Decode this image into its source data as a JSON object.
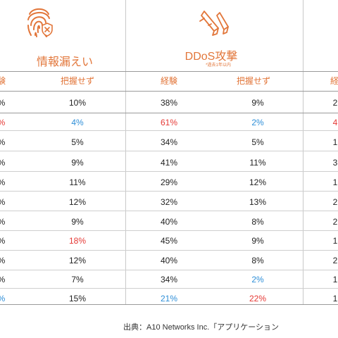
{
  "categories": [
    {
      "title": "情報漏えい",
      "subtitle": ""
    },
    {
      "title": "DDoS攻撃",
      "subtitle": "*過去1年以内"
    }
  ],
  "headers": [
    "験",
    "把握せず",
    "経験",
    "把握せず",
    "経"
  ],
  "rows": [
    {
      "c0": "%",
      "c1": "10%",
      "c2": "38%",
      "c3": "9%",
      "c4": "2"
    },
    {
      "c0": "%",
      "c1": "4%",
      "c2": "61%",
      "c3": "2%",
      "c4": "4"
    },
    {
      "c0": "%",
      "c1": "5%",
      "c2": "34%",
      "c3": "5%",
      "c4": "1"
    },
    {
      "c0": "%",
      "c1": "9%",
      "c2": "41%",
      "c3": "11%",
      "c4": "3"
    },
    {
      "c0": "%",
      "c1": "11%",
      "c2": "29%",
      "c3": "12%",
      "c4": "1"
    },
    {
      "c0": "%",
      "c1": "12%",
      "c2": "32%",
      "c3": "13%",
      "c4": "2"
    },
    {
      "c0": "%",
      "c1": "9%",
      "c2": "40%",
      "c3": "8%",
      "c4": "2"
    },
    {
      "c0": "%",
      "c1": "18%",
      "c2": "45%",
      "c3": "9%",
      "c4": "1"
    },
    {
      "c0": "%",
      "c1": "12%",
      "c2": "40%",
      "c3": "8%",
      "c4": "2"
    },
    {
      "c0": "%",
      "c1": "7%",
      "c2": "34%",
      "c3": "2%",
      "c4": "1"
    },
    {
      "c0": "%",
      "c1": "15%",
      "c2": "21%",
      "c3": "22%",
      "c4": "1"
    }
  ],
  "highlights": {
    "r1": [
      "red",
      "blue",
      "red",
      "blue",
      "red"
    ],
    "r7": [
      "gray",
      "red",
      "gray",
      "gray",
      "gray"
    ],
    "r9": [
      "gray",
      "gray",
      "gray",
      "blue",
      "gray"
    ],
    "r10": [
      "blue",
      "gray",
      "blue",
      "red",
      "gray"
    ]
  },
  "source": "出典：A10 Networks Inc.「アプリケーション",
  "colors": {
    "accent": "#e2763a",
    "high": "#e53935",
    "low": "#2f8fd8"
  }
}
